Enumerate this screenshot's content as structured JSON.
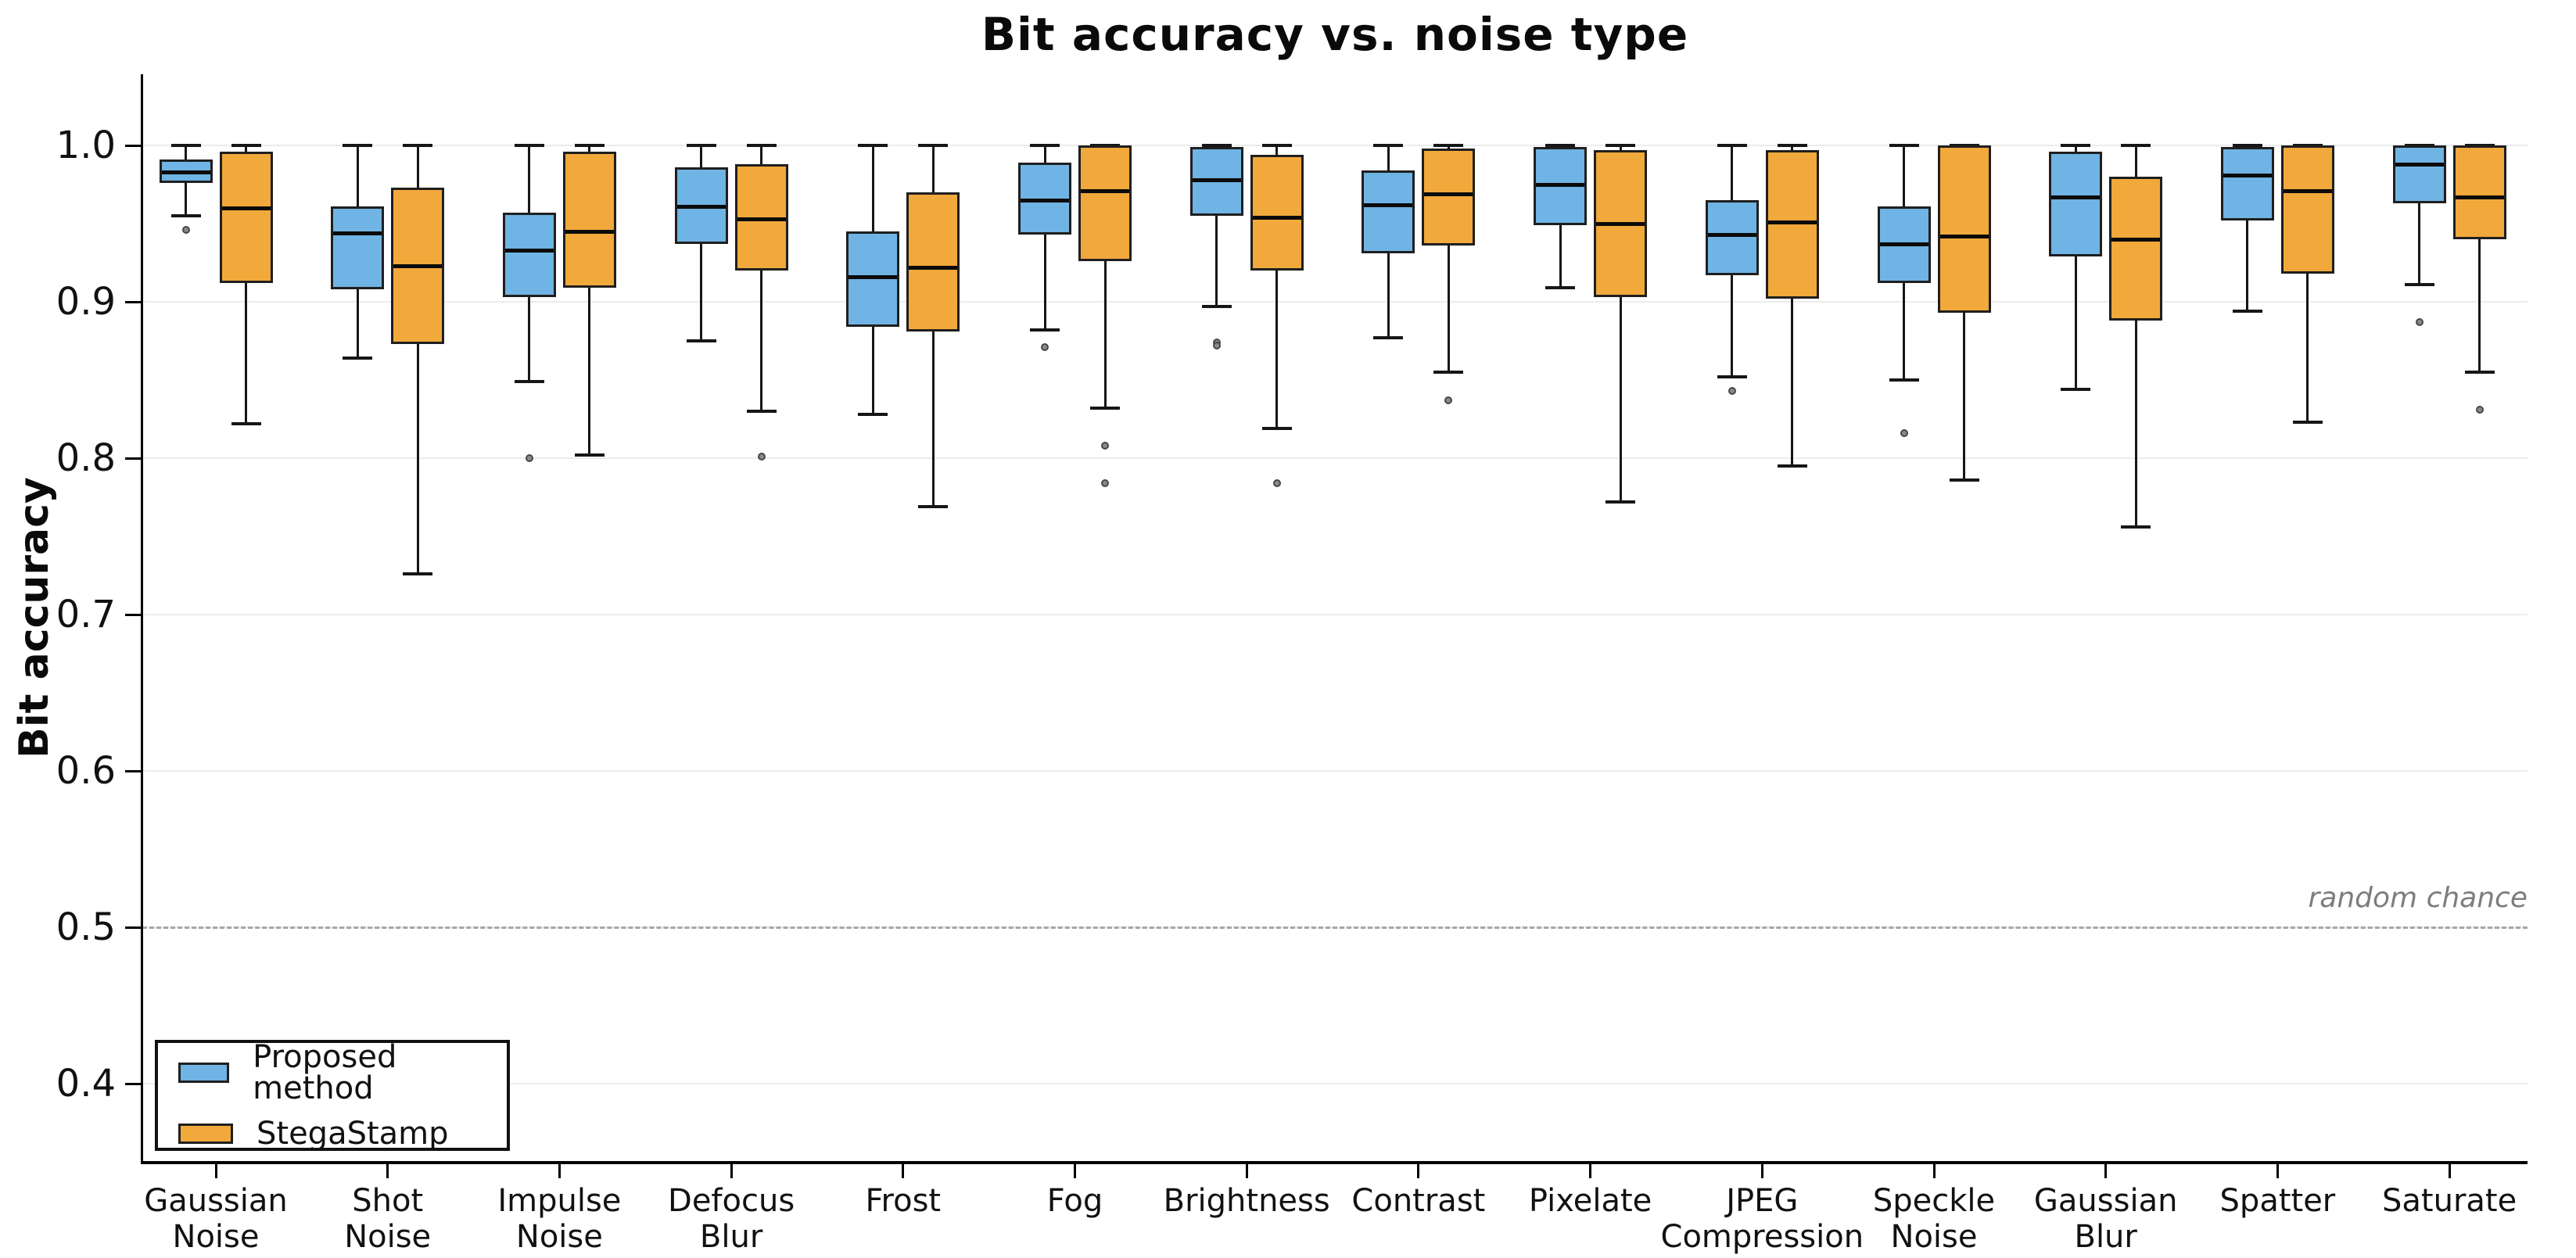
{
  "title": "Bit accuracy vs. noise type",
  "ylabel": "Bit accuracy",
  "annotation": {
    "random_chance_label": "random chance"
  },
  "legend": {
    "items": [
      {
        "label": "Proposed method",
        "color": "#6FB4E4"
      },
      {
        "label": "StegaStamp",
        "color": "#F1A93B"
      }
    ]
  },
  "chart_data": {
    "type": "box",
    "title": "Bit accuracy vs. noise type",
    "xlabel": "",
    "ylabel": "Bit accuracy",
    "grid": "horizontal",
    "legend_position": "lower left",
    "ylim": [
      0.35,
      1.046
    ],
    "yticks": [
      1.0,
      0.9,
      0.8,
      0.7,
      0.6,
      0.5,
      0.4
    ],
    "ytick_labels": [
      "1.0",
      "0.9",
      "0.8",
      "0.7",
      "0.6",
      "0.5",
      "0.4"
    ],
    "reference_line": {
      "value": 0.5,
      "label": "random chance",
      "style": "dashed",
      "color": "#a6a6a6"
    },
    "categories": [
      "Gaussian\nNoise",
      "Shot\nNoise",
      "Impulse\nNoise",
      "Defocus\nBlur",
      "Frost",
      "Fog",
      "Brightness",
      "Contrast",
      "Pixelate",
      "JPEG\nCompression",
      "Speckle\nNoise",
      "Gaussian\nBlur",
      "Spatter",
      "Saturate"
    ],
    "series": [
      {
        "name": "Proposed method",
        "color": "#6FB4E4",
        "boxes": [
          {
            "whislo": 0.955,
            "q1": 0.976,
            "med": 0.983,
            "q3": 0.991,
            "whishi": 1.0,
            "fliers": [
              0.946
            ]
          },
          {
            "whislo": 0.864,
            "q1": 0.908,
            "med": 0.944,
            "q3": 0.961,
            "whishi": 1.0,
            "fliers": []
          },
          {
            "whislo": 0.849,
            "q1": 0.903,
            "med": 0.933,
            "q3": 0.957,
            "whishi": 1.0,
            "fliers": [
              0.8
            ]
          },
          {
            "whislo": 0.875,
            "q1": 0.937,
            "med": 0.961,
            "q3": 0.986,
            "whishi": 1.0,
            "fliers": []
          },
          {
            "whislo": 0.828,
            "q1": 0.884,
            "med": 0.916,
            "q3": 0.945,
            "whishi": 1.0,
            "fliers": []
          },
          {
            "whislo": 0.882,
            "q1": 0.943,
            "med": 0.965,
            "q3": 0.989,
            "whishi": 1.0,
            "fliers": [
              0.871
            ]
          },
          {
            "whislo": 0.897,
            "q1": 0.955,
            "med": 0.978,
            "q3": 0.999,
            "whishi": 1.0,
            "fliers": [
              0.874,
              0.872
            ]
          },
          {
            "whislo": 0.877,
            "q1": 0.931,
            "med": 0.962,
            "q3": 0.984,
            "whishi": 1.0,
            "fliers": []
          },
          {
            "whislo": 0.909,
            "q1": 0.949,
            "med": 0.975,
            "q3": 0.999,
            "whishi": 1.0,
            "fliers": []
          },
          {
            "whislo": 0.852,
            "q1": 0.917,
            "med": 0.943,
            "q3": 0.965,
            "whishi": 1.0,
            "fliers": [
              0.843
            ]
          },
          {
            "whislo": 0.85,
            "q1": 0.912,
            "med": 0.937,
            "q3": 0.961,
            "whishi": 1.0,
            "fliers": [
              0.816
            ]
          },
          {
            "whislo": 0.844,
            "q1": 0.929,
            "med": 0.967,
            "q3": 0.996,
            "whishi": 1.0,
            "fliers": []
          },
          {
            "whislo": 0.894,
            "q1": 0.952,
            "med": 0.981,
            "q3": 0.999,
            "whishi": 1.0,
            "fliers": []
          },
          {
            "whislo": 0.911,
            "q1": 0.963,
            "med": 0.988,
            "q3": 1.0,
            "whishi": 1.0,
            "fliers": [
              0.887
            ]
          }
        ]
      },
      {
        "name": "StegaStamp",
        "color": "#F1A93B",
        "boxes": [
          {
            "whislo": 0.822,
            "q1": 0.912,
            "med": 0.96,
            "q3": 0.996,
            "whishi": 1.0,
            "fliers": []
          },
          {
            "whislo": 0.726,
            "q1": 0.873,
            "med": 0.923,
            "q3": 0.973,
            "whishi": 1.0,
            "fliers": []
          },
          {
            "whislo": 0.802,
            "q1": 0.909,
            "med": 0.945,
            "q3": 0.996,
            "whishi": 1.0,
            "fliers": []
          },
          {
            "whislo": 0.83,
            "q1": 0.92,
            "med": 0.953,
            "q3": 0.988,
            "whishi": 1.0,
            "fliers": [
              0.801
            ]
          },
          {
            "whislo": 0.769,
            "q1": 0.881,
            "med": 0.922,
            "q3": 0.97,
            "whishi": 1.0,
            "fliers": []
          },
          {
            "whislo": 0.832,
            "q1": 0.926,
            "med": 0.971,
            "q3": 1.0,
            "whishi": 1.0,
            "fliers": [
              0.808,
              0.784
            ]
          },
          {
            "whislo": 0.819,
            "q1": 0.92,
            "med": 0.954,
            "q3": 0.994,
            "whishi": 1.0,
            "fliers": [
              0.784
            ]
          },
          {
            "whislo": 0.855,
            "q1": 0.936,
            "med": 0.969,
            "q3": 0.998,
            "whishi": 1.0,
            "fliers": [
              0.837
            ]
          },
          {
            "whislo": 0.772,
            "q1": 0.903,
            "med": 0.95,
            "q3": 0.997,
            "whishi": 1.0,
            "fliers": []
          },
          {
            "whislo": 0.795,
            "q1": 0.902,
            "med": 0.951,
            "q3": 0.997,
            "whishi": 1.0,
            "fliers": []
          },
          {
            "whislo": 0.786,
            "q1": 0.893,
            "med": 0.942,
            "q3": 1.0,
            "whishi": 1.0,
            "fliers": []
          },
          {
            "whislo": 0.756,
            "q1": 0.888,
            "med": 0.94,
            "q3": 0.98,
            "whishi": 1.0,
            "fliers": []
          },
          {
            "whislo": 0.823,
            "q1": 0.918,
            "med": 0.971,
            "q3": 1.0,
            "whishi": 1.0,
            "fliers": []
          },
          {
            "whislo": 0.855,
            "q1": 0.94,
            "med": 0.967,
            "q3": 1.0,
            "whishi": 1.0,
            "fliers": [
              0.831
            ]
          }
        ]
      }
    ]
  }
}
